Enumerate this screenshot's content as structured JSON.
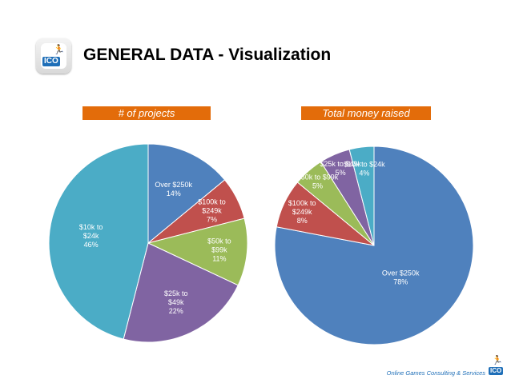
{
  "header": {
    "title": "GENERAL DATA - Visualization",
    "logo_text": "ICO",
    "logo_icon": "runner-icon"
  },
  "footer": {
    "text": "Online Games Consulting & Services",
    "logo_text": "ICO"
  },
  "colors": {
    "label_bg": "#e36c0a",
    "blue": "#4f81bd",
    "red": "#c0504d",
    "green": "#9bbb59",
    "purple": "#8064a2",
    "teal": "#4bacc6"
  },
  "chart_data": [
    {
      "type": "pie",
      "title": "# of projects",
      "slices": [
        {
          "label": "Over $250k",
          "value": 14,
          "percent_label": "14%",
          "color": "#4f81bd"
        },
        {
          "label": "$100k to $249k",
          "value": 7,
          "percent_label": "7%",
          "color": "#c0504d"
        },
        {
          "label": "$50k to $99k",
          "value": 11,
          "percent_label": "11%",
          "color": "#9bbb59"
        },
        {
          "label": "$25k to $49k",
          "value": 22,
          "percent_label": "22%",
          "color": "#8064a2"
        },
        {
          "label": "$10k to $24k",
          "value": 46,
          "percent_label": "46%",
          "color": "#4bacc6"
        }
      ]
    },
    {
      "type": "pie",
      "title": "Total money raised",
      "slices": [
        {
          "label": "Over $250k",
          "value": 78,
          "percent_label": "78%",
          "color": "#4f81bd"
        },
        {
          "label": "$100k to $249k",
          "value": 8,
          "percent_label": "8%",
          "color": "#c0504d"
        },
        {
          "label": "$50k to $99k",
          "value": 5,
          "percent_label": "5%",
          "color": "#9bbb59"
        },
        {
          "label": "$25k to $49k",
          "value": 5,
          "percent_label": "5%",
          "color": "#8064a2"
        },
        {
          "label": "$10k to $24k",
          "value": 4,
          "percent_label": "4%",
          "color": "#4bacc6"
        }
      ]
    }
  ]
}
